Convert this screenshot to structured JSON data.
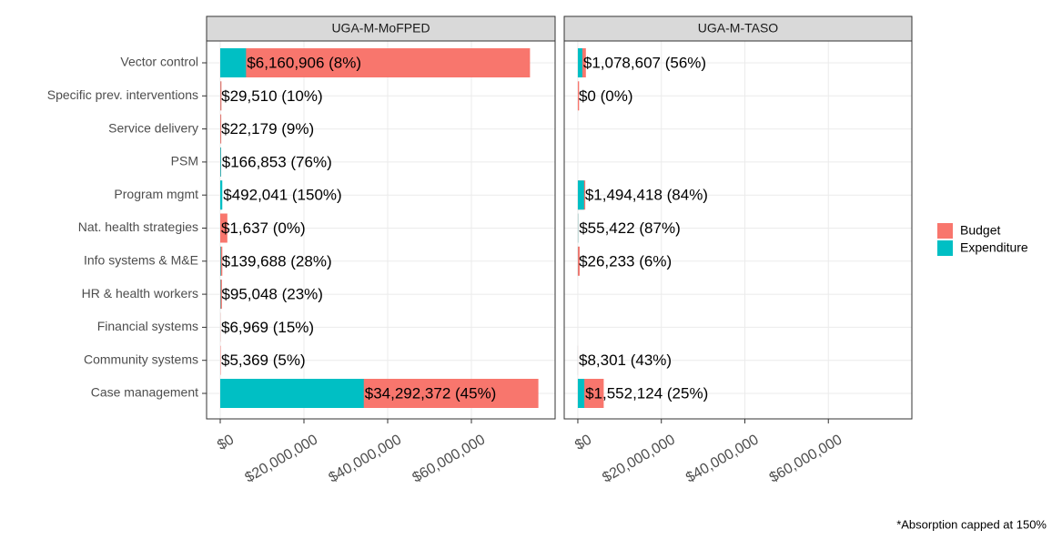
{
  "chart_data": {
    "type": "bar",
    "orientation": "horizontal",
    "categories": [
      "Vector control",
      "Specific prev. interventions",
      "Service delivery",
      "PSM",
      "Program mgmt",
      "Nat. health strategies",
      "Info systems & M&E",
      "HR & health workers",
      "Financial systems",
      "Community systems",
      "Case management"
    ],
    "series": [
      {
        "name": "Budget",
        "color": "#F8766D"
      },
      {
        "name": "Expenditure",
        "color": "#00BFC4"
      }
    ],
    "facets": [
      {
        "title": "UGA-M-MoFPED",
        "series": [
          {
            "values": [
              74000000,
              295000,
              246000,
              220000,
              300000,
              1700000,
              500000,
              413000,
              46000,
              107000,
              76000000
            ]
          },
          {
            "values": [
              6160906,
              29510,
              22179,
              166853,
              492041,
              1637,
              139688,
              95048,
              6969,
              5369,
              34292372
            ],
            "value_labels": [
              "$6,160,906 (8%)",
              "$29,510 (10%)",
              "$22,179 (9%)",
              "$166,853 (76%)",
              "$492,041 (150%)",
              "$1,637 (0%)",
              "$139,688 (28%)",
              "$95,048 (23%)",
              "$6,969 (15%)",
              "$5,369 (5%)",
              "$34,292,372 (45%)"
            ]
          }
        ]
      },
      {
        "title": "UGA-M-TASO",
        "series": [
          {
            "values": [
              1930000,
              300000,
              null,
              null,
              1780000,
              64000,
              437000,
              null,
              null,
              19300,
              6200000
            ]
          },
          {
            "values": [
              1078607,
              0,
              null,
              null,
              1494418,
              55422,
              26233,
              null,
              null,
              8301,
              1552124
            ],
            "value_labels": [
              "$1,078,607 (56%)",
              "$0 (0%)",
              null,
              null,
              "$1,494,418 (84%)",
              "$55,422 (87%)",
              "$26,233 (6%)",
              null,
              null,
              "$8,301 (43%)",
              "$1,552,124 (25%)"
            ]
          }
        ]
      }
    ],
    "xlim": [
      -3260000,
      80000000
    ],
    "xticks": [
      {
        "value": 0,
        "label": "$0"
      },
      {
        "value": 20000000,
        "label": "$20,000,000"
      },
      {
        "value": 40000000,
        "label": "$40,000,000"
      },
      {
        "value": 60000000,
        "label": "$60,000,000"
      }
    ],
    "grid": true,
    "legend": "right"
  },
  "footnote": "*Absorption capped at 150%"
}
